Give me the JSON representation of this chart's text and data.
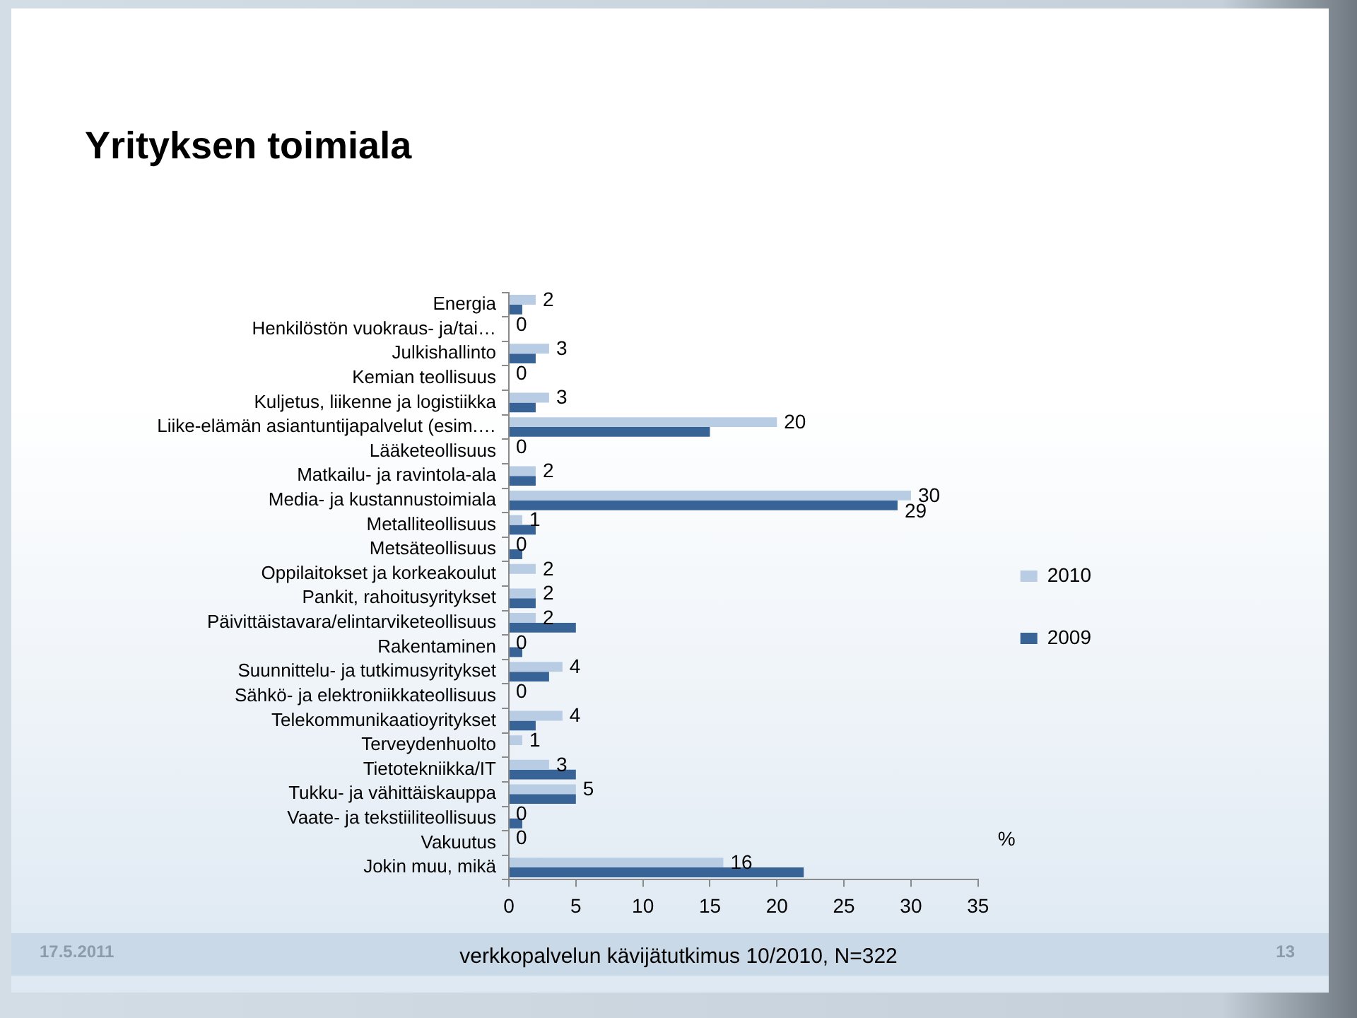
{
  "chart_data": {
    "type": "bar",
    "title": "Yrityksen toimiala",
    "orientation": "horizontal",
    "categories": [
      "Energia",
      "Henkilöstön vuokraus- ja/tai…",
      "Julkishallinto",
      "Kemian teollisuus",
      "Kuljetus, liikenne ja logistiikka",
      "Liike-elämän asiantuntijapalvelut (esim.…",
      "Lääketeollisuus",
      "Matkailu- ja ravintola-ala",
      "Media- ja kustannustoimiala",
      "Metalliteollisuus",
      "Metsäteollisuus",
      "Oppilaitokset ja korkeakoulut",
      "Pankit, rahoitusyritykset",
      "Päivittäistavara/elintarviketeollisuus",
      "Rakentaminen",
      "Suunnittelu- ja tutkimusyritykset",
      "Sähkö- ja elektroniikkateollisuus",
      "Telekommunikaatioyritykset",
      "Terveydenhuolto",
      "Tietotekniikka/IT",
      "Tukku- ja vähittäiskauppa",
      "Vaate- ja tekstiiliteollisuus",
      "Vakuutus",
      "Jokin muu, mikä"
    ],
    "series": [
      {
        "name": "2010",
        "color": "#b8cce4",
        "values": [
          2,
          0,
          3,
          0,
          3,
          20,
          0,
          2,
          30,
          1,
          0,
          2,
          2,
          2,
          0,
          4,
          0,
          4,
          1,
          3,
          5,
          0,
          0,
          16
        ],
        "value_labels": [
          "2",
          "0",
          "3",
          "0",
          "3",
          "20",
          "0",
          "2",
          "30",
          "1",
          "0",
          "2",
          "2",
          "2",
          "0",
          "4",
          "0",
          "4",
          "1",
          "3",
          "5",
          "0",
          "0",
          "16"
        ]
      },
      {
        "name": "2009",
        "color": "#386396",
        "values": [
          1,
          0,
          2,
          0,
          2,
          15,
          0,
          2,
          29,
          2,
          1,
          0,
          2,
          5,
          1,
          3,
          0,
          2,
          0,
          5,
          5,
          1,
          0,
          22
        ],
        "value_labels": [
          null,
          null,
          null,
          null,
          null,
          null,
          null,
          null,
          "29",
          null,
          null,
          null,
          null,
          null,
          null,
          null,
          null,
          null,
          null,
          null,
          null,
          null,
          null,
          null
        ]
      }
    ],
    "xlabel": "%",
    "xlim": [
      0,
      35
    ],
    "xticks": [
      0,
      5,
      10,
      15,
      20,
      25,
      30,
      35
    ],
    "grid": false,
    "legend": "right",
    "annotations": [
      "17.5.2011",
      "verkkopalvelun kävijätutkimus 10/2010, N=322",
      "13"
    ]
  }
}
